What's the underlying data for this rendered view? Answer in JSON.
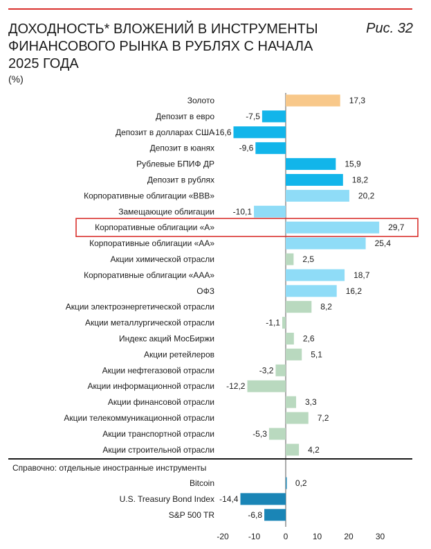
{
  "header": {
    "title": "ДОХОДНОСТЬ* ВЛОЖЕНИЙ В ИНСТРУМЕНТЫ ФИНАНСОВОГО РЫНКА В РУБЛЯХ С НАЧАЛА 2025 ГОДА",
    "unit": "(%)",
    "figure_label": "Рис. 32"
  },
  "colors": {
    "gold": "#f8c88a",
    "deposit": "#12b5ea",
    "light_blue": "#8fdcf7",
    "green": "#b9d9bf",
    "dark_blue": "#1a85b6",
    "highlight": "#d9302c"
  },
  "chart_data": {
    "type": "bar",
    "orientation": "horizontal",
    "xlim": [
      -20,
      35
    ],
    "xticks": [
      "-20",
      "-10",
      "0",
      "10",
      "20",
      "30"
    ],
    "highlighted_category": "Корпоративные облигации «А»",
    "section_label": "Справочно: отдельные иностранные инструменты",
    "categories": [
      {
        "label": "Золото",
        "value": 17.3,
        "value_label": "17,3",
        "color_key": "gold"
      },
      {
        "label": "Депозит в евро",
        "value": -7.5,
        "value_label": "-7,5",
        "color_key": "deposit"
      },
      {
        "label": "Депозит в долларах США",
        "value": -16.6,
        "value_label": "-16,6",
        "color_key": "deposit"
      },
      {
        "label": "Депозит в юанях",
        "value": -9.6,
        "value_label": "-9,6",
        "color_key": "deposit"
      },
      {
        "label": "Рублевые БПИФ ДР",
        "value": 15.9,
        "value_label": "15,9",
        "color_key": "deposit"
      },
      {
        "label": "Депозит в рублях",
        "value": 18.2,
        "value_label": "18,2",
        "color_key": "deposit"
      },
      {
        "label": "Корпоративные облигации «BBB»",
        "value": 20.2,
        "value_label": "20,2",
        "color_key": "light_blue"
      },
      {
        "label": "Замещающие облигации",
        "value": -10.1,
        "value_label": "-10,1",
        "color_key": "light_blue"
      },
      {
        "label": "Корпоративные облигации «А»",
        "value": 29.7,
        "value_label": "29,7",
        "color_key": "light_blue"
      },
      {
        "label": "Корпоративные облигации «АА»",
        "value": 25.4,
        "value_label": "25,4",
        "color_key": "light_blue"
      },
      {
        "label": "Акции химической отрасли",
        "value": 2.5,
        "value_label": "2,5",
        "color_key": "green"
      },
      {
        "label": "Корпоративные облигации «ААА»",
        "value": 18.7,
        "value_label": "18,7",
        "color_key": "light_blue"
      },
      {
        "label": "ОФЗ",
        "value": 16.2,
        "value_label": "16,2",
        "color_key": "light_blue"
      },
      {
        "label": "Акции электроэнергетической отрасли",
        "value": 8.2,
        "value_label": "8,2",
        "color_key": "green"
      },
      {
        "label": "Акции металлургической отрасли",
        "value": -1.1,
        "value_label": "-1,1",
        "color_key": "green"
      },
      {
        "label": "Индекс акций МосБиржи",
        "value": 2.6,
        "value_label": "2,6",
        "color_key": "green"
      },
      {
        "label": "Акции ретейлеров",
        "value": 5.1,
        "value_label": "5,1",
        "color_key": "green"
      },
      {
        "label": "Акции нефтегазовой отрасли",
        "value": -3.2,
        "value_label": "-3,2",
        "color_key": "green"
      },
      {
        "label": "Акции информационной отрасли",
        "value": -12.2,
        "value_label": "-12,2",
        "color_key": "green"
      },
      {
        "label": "Акции финансовой отрасли",
        "value": 3.3,
        "value_label": "3,3",
        "color_key": "green"
      },
      {
        "label": "Акции телекоммуникационной отрасли",
        "value": 7.2,
        "value_label": "7,2",
        "color_key": "green"
      },
      {
        "label": "Акции транспортной отрасли",
        "value": -5.3,
        "value_label": "-5,3",
        "color_key": "green"
      },
      {
        "label": "Акции строительной отрасли",
        "value": 4.2,
        "value_label": "4,2",
        "color_key": "green"
      }
    ],
    "reference_categories": [
      {
        "label": "Bitcoin",
        "value": 0.2,
        "value_label": "0,2",
        "color_key": "dark_blue"
      },
      {
        "label": "U.S. Treasury Bond Index",
        "value": -14.4,
        "value_label": "-14,4",
        "color_key": "dark_blue"
      },
      {
        "label": "S&P 500 TR",
        "value": -6.8,
        "value_label": "-6,8",
        "color_key": "dark_blue"
      }
    ]
  }
}
